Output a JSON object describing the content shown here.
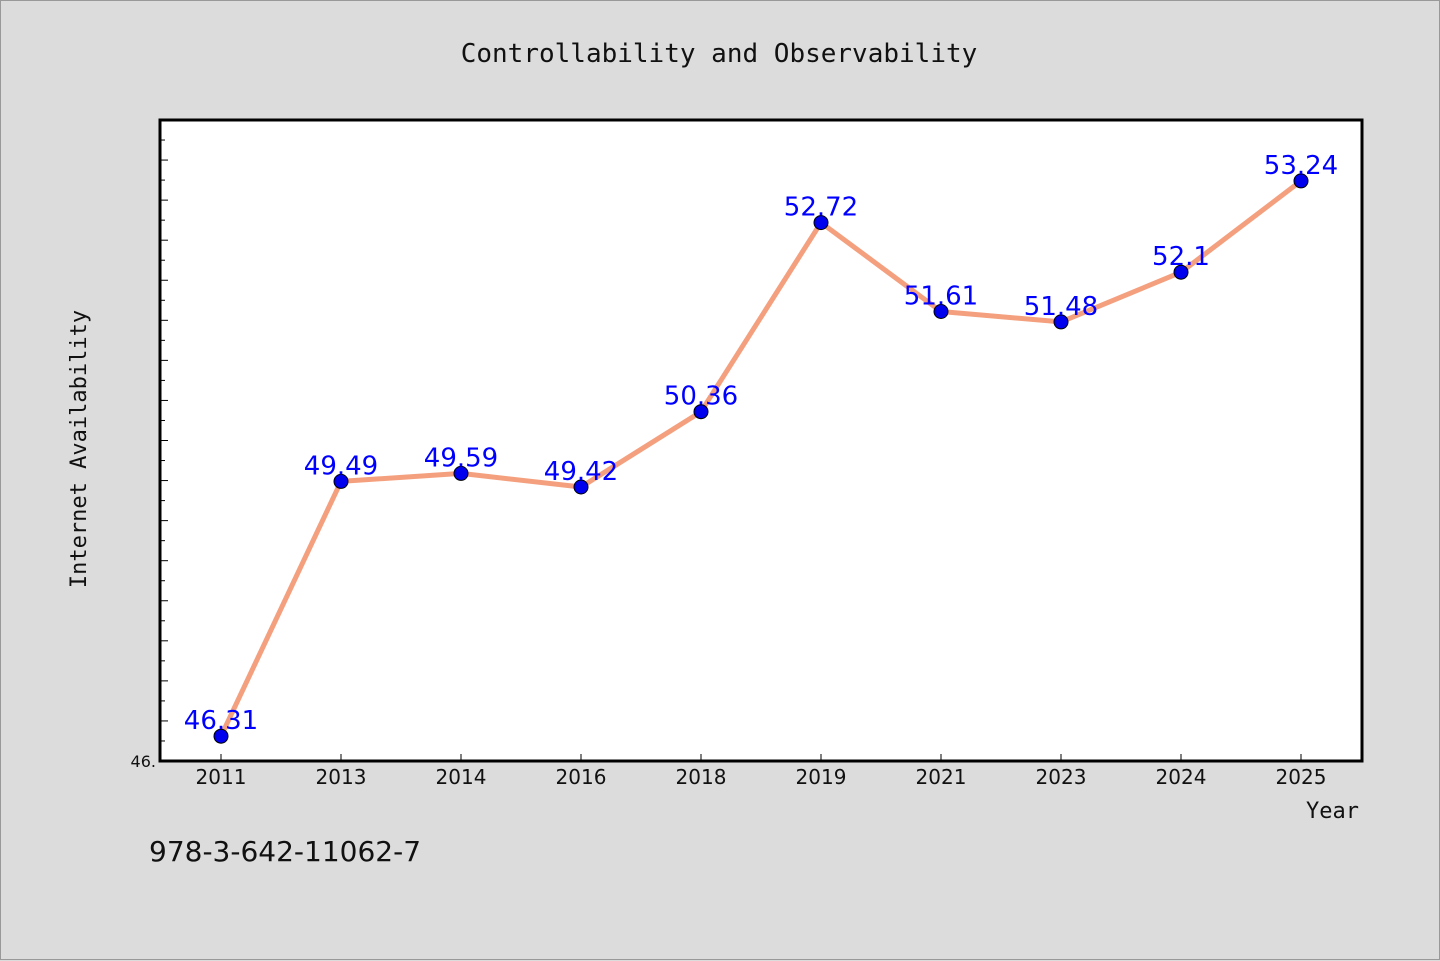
{
  "chart_data": {
    "type": "line",
    "title": "Controllability and Observability",
    "xlabel": "Year",
    "ylabel": "Internet Availability",
    "categories": [
      "2011",
      "2013",
      "2014",
      "2016",
      "2018",
      "2019",
      "2021",
      "2023",
      "2024",
      "2025"
    ],
    "series": [
      {
        "values": [
          46.31,
          49.49,
          49.59,
          49.42,
          50.36,
          52.72,
          51.61,
          51.48,
          52.1,
          53.24
        ],
        "labels": [
          "46.31",
          "49.49",
          "49.59",
          "49.42",
          "50.36",
          "52.72",
          "51.61",
          "51.48",
          "52.1",
          "53.24"
        ],
        "line_color": "#f4a07e",
        "marker_color": "#0000ee",
        "label_color": "#0000ff"
      }
    ],
    "ylim": [
      46.0,
      54.0
    ],
    "y_tick_labels": [
      "46."
    ],
    "grid": false,
    "legend": "none"
  },
  "footer_text": "978-3-642-11062-7",
  "colors": {
    "background": "#dcdcdc",
    "plot_background": "#ffffff",
    "axis": "#000000"
  }
}
